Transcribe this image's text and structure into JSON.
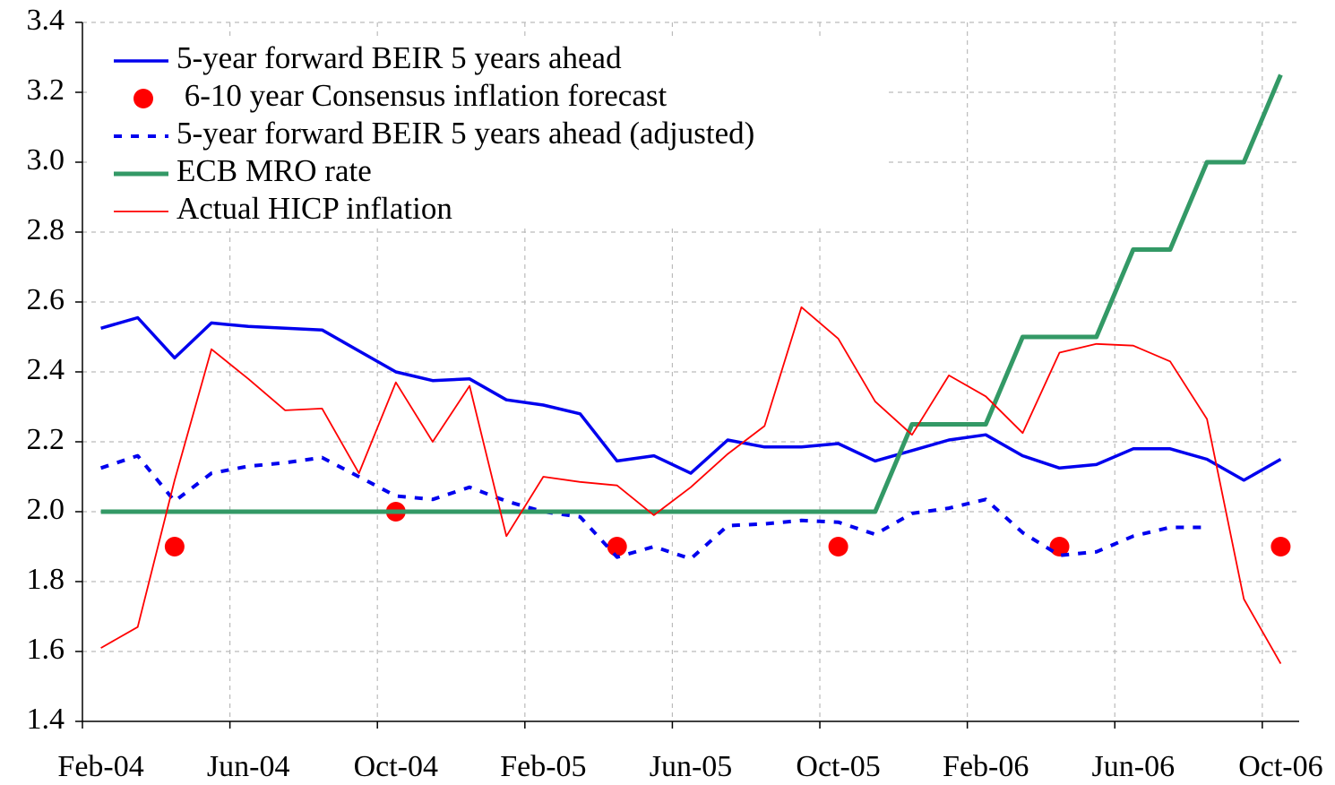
{
  "chart_data": {
    "type": "line",
    "categories": [
      "Feb-04",
      null,
      null,
      null,
      "Jun-04",
      null,
      null,
      null,
      "Oct-04",
      null,
      null,
      null,
      "Feb-05",
      null,
      null,
      null,
      "Jun-05",
      null,
      null,
      null,
      "Oct-05",
      null,
      null,
      null,
      "Feb-06",
      null,
      null,
      null,
      "Jun-06",
      null,
      null,
      null,
      "Oct-06"
    ],
    "ylim": [
      1.4,
      3.4
    ],
    "yticks": [
      1.4,
      1.6,
      1.8,
      {
        "value": 2,
        "label": "2.0"
      },
      2.2,
      2.4,
      2.6,
      2.8,
      {
        "value": 3,
        "label": "3.0"
      },
      3.2,
      3.4
    ],
    "grid": true,
    "legend": "top-left",
    "series": [
      {
        "name": "5-year forward BEIR 5 years ahead",
        "color": "#0000ee",
        "style": "solid",
        "width": 3.5,
        "values": [
          2.525,
          2.555,
          2.44,
          2.54,
          2.53,
          2.525,
          2.52,
          2.46,
          2.4,
          2.375,
          2.38,
          2.32,
          2.305,
          2.28,
          2.145,
          2.16,
          2.11,
          2.205,
          2.185,
          2.185,
          2.195,
          2.145,
          2.175,
          2.205,
          2.22,
          2.16,
          2.125,
          2.135,
          2.18,
          2.18,
          2.15,
          2.09,
          2.15
        ]
      },
      {
        "name": " 6-10 year Consensus inflation forecast",
        "color": "#ff0000",
        "style": "dots",
        "width": 11,
        "values": [
          null,
          null,
          1.9,
          null,
          null,
          null,
          null,
          null,
          2,
          null,
          null,
          null,
          null,
          null,
          1.9,
          null,
          null,
          null,
          null,
          null,
          1.9,
          null,
          null,
          null,
          null,
          null,
          1.9,
          null,
          null,
          null,
          null,
          null,
          1.9
        ]
      },
      {
        "name": "5-year forward BEIR 5 years ahead (adjusted)",
        "color": "#0000ee",
        "style": "dashed",
        "width": 4,
        "values": [
          2.125,
          2.16,
          2.03,
          2.11,
          2.13,
          2.14,
          2.155,
          2.1,
          2.045,
          2.035,
          2.07,
          2.03,
          2.0,
          1.985,
          1.87,
          1.9,
          1.865,
          1.96,
          1.965,
          1.975,
          1.97,
          1.935,
          1.995,
          2.01,
          2.035,
          1.94,
          1.875,
          1.885,
          1.93,
          1.955,
          1.955,
          null,
          null
        ]
      },
      {
        "name": "ECB MRO rate",
        "color": "#339966",
        "style": "solid",
        "width": 5,
        "values": [
          2,
          2,
          2,
          2,
          2,
          2,
          2,
          2,
          2,
          2,
          2,
          2,
          2,
          2,
          2,
          2,
          2,
          2,
          2,
          2,
          2,
          2,
          2.25,
          2.25,
          2.25,
          2.5,
          2.5,
          2.5,
          2.75,
          2.75,
          3,
          3,
          3.25
        ]
      },
      {
        "name": "Actual HICP inflation",
        "color": "#ff0000",
        "style": "solid",
        "width": 1.8,
        "values": [
          1.61,
          1.67,
          2.09,
          2.465,
          2.38,
          2.29,
          2.295,
          2.11,
          2.37,
          2.2,
          2.36,
          1.93,
          2.1,
          2.085,
          2.075,
          1.99,
          2.07,
          2.165,
          2.245,
          2.585,
          2.495,
          2.315,
          2.22,
          2.39,
          2.33,
          2.225,
          2.455,
          2.48,
          2.475,
          2.43,
          2.265,
          1.75,
          1.565
        ]
      }
    ]
  }
}
